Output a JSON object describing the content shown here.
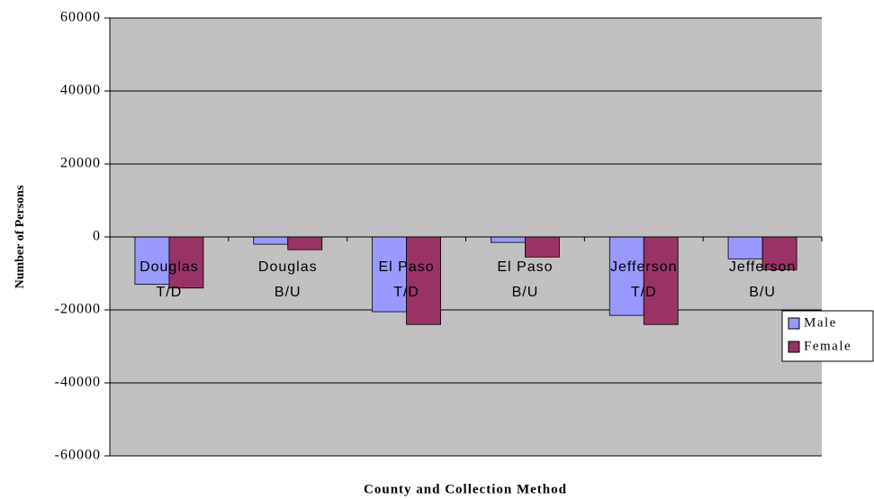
{
  "chart_data": {
    "type": "bar",
    "y_label": "Number of Persons",
    "x_label": "County and Collection Method",
    "categories": [
      [
        "Douglas",
        "T/D"
      ],
      [
        "Douglas",
        "B/U"
      ],
      [
        "El Paso",
        "T/D"
      ],
      [
        "El Paso",
        "B/U"
      ],
      [
        "Jefferson",
        "T/D"
      ],
      [
        "Jefferson",
        "B/U"
      ]
    ],
    "series": [
      {
        "name": "Male",
        "color": "#9999ff",
        "values": [
          -13000,
          -2000,
          -20500,
          -1500,
          -21500,
          -6000
        ]
      },
      {
        "name": "Female",
        "color": "#993366",
        "values": [
          -14000,
          -3500,
          -24000,
          -5500,
          -24000,
          -9000
        ]
      }
    ],
    "ylim": [
      -60000,
      60000
    ],
    "yticks": [
      -60000,
      -40000,
      -20000,
      0,
      20000,
      40000,
      60000
    ],
    "grid": true,
    "plot_background": "#c0c0c0",
    "legend": "right"
  }
}
